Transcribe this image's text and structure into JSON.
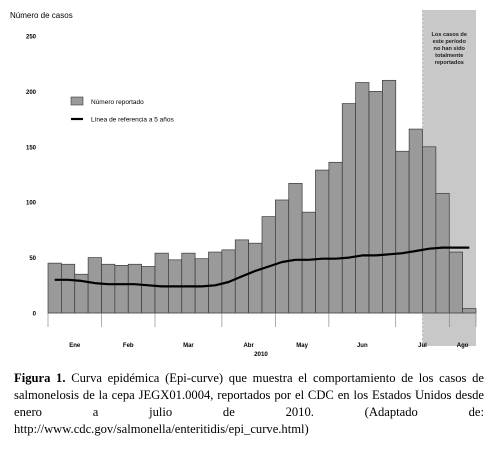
{
  "chart_data": {
    "type": "bar",
    "title": "Número de casos",
    "ylim": [
      0,
      250
    ],
    "yticks": [
      0,
      50,
      100,
      150,
      200,
      250
    ],
    "grid": false,
    "legend_position": "top-left",
    "series": [
      {
        "name": "Número reportado",
        "kind": "bar",
        "color": "#9a9a9a",
        "values": [
          45,
          44,
          35,
          50,
          44,
          43,
          44,
          42,
          54,
          48,
          54,
          49,
          55,
          57,
          66,
          63,
          87,
          102,
          117,
          91,
          129,
          136,
          189,
          208,
          200,
          210,
          146,
          166,
          150,
          108,
          55,
          4
        ]
      },
      {
        "name": "Línea de referencia a 5 años",
        "kind": "line",
        "color": "#000000",
        "values": [
          30,
          30,
          29,
          27,
          26,
          26,
          26,
          25,
          24,
          24,
          24,
          24,
          25,
          28,
          33,
          38,
          42,
          46,
          48,
          48,
          49,
          49,
          50,
          52,
          52,
          53,
          54,
          56,
          58,
          59,
          59,
          59
        ]
      }
    ],
    "month_labels": [
      "Ene",
      "Feb",
      "Mar",
      "Abr",
      "May",
      "Jun",
      "Jul",
      "Ago"
    ],
    "month_boundaries": [
      0,
      4,
      8,
      13,
      17,
      21,
      26,
      30,
      32
    ],
    "year_label": "2010",
    "shaded_region": {
      "from_week": 28,
      "to_week": 32,
      "color": "#c8c8c8",
      "text": "Los casos de este período no han sido totalmente reportados"
    }
  },
  "caption": {
    "label": "Figura 1.",
    "text": " Curva epidémica (Epi-curve) que muestra el comportamiento de los casos de salmonelosis de la cepa JEGX01.0004, reportados por el CDC en los Estados Unidos desde enero a julio de 2010. (Adaptado de: http://www.cdc.gov/salmonella/enteritidis/epi_curve.html)"
  }
}
